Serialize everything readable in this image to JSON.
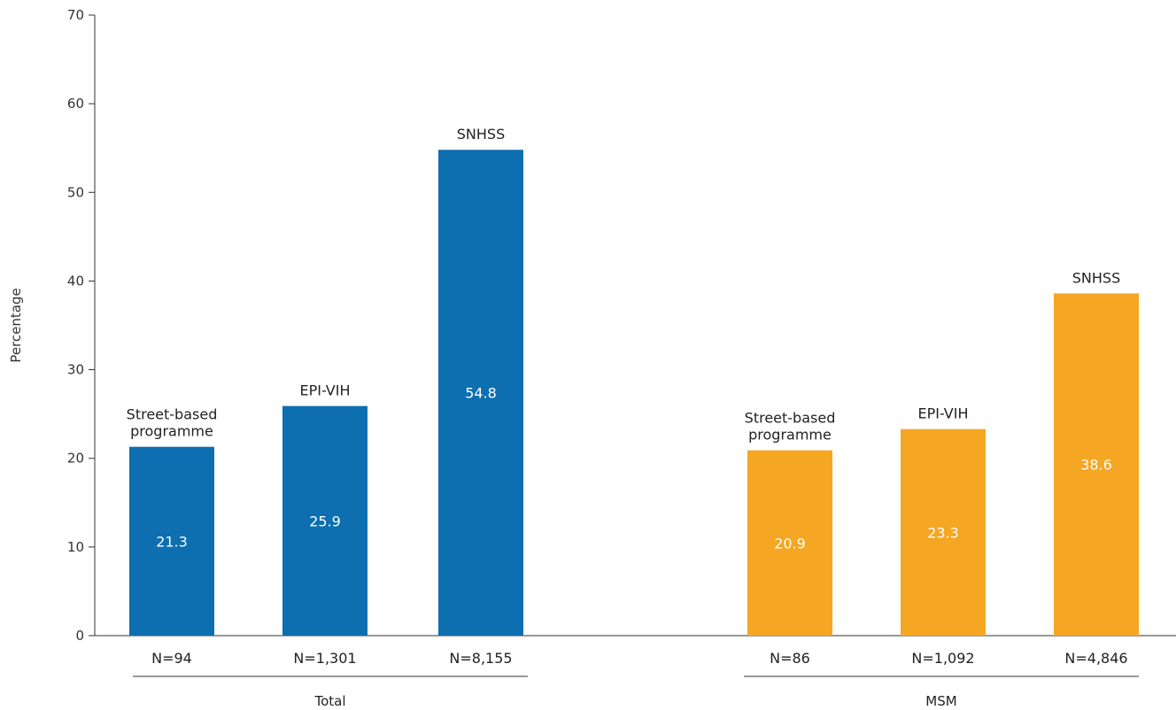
{
  "chart_data": {
    "type": "bar",
    "ylabel": "Percentage",
    "ylim": [
      0,
      70
    ],
    "yticks": [
      0,
      10,
      20,
      30,
      40,
      50,
      60,
      70
    ],
    "groups": [
      {
        "name": "Total",
        "color": "#0d6fb0",
        "bars": [
          {
            "label": [
              "Street-based",
              "programme"
            ],
            "value": 21.3,
            "value_text": "21.3",
            "n": "N=94"
          },
          {
            "label": [
              "EPI-VIH"
            ],
            "value": 25.9,
            "value_text": "25.9",
            "n": "N=1,301"
          },
          {
            "label": [
              "SNHSS"
            ],
            "value": 54.8,
            "value_text": "54.8",
            "n": "N=8,155"
          }
        ]
      },
      {
        "name": "MSM",
        "color": "#f5a623",
        "bars": [
          {
            "label": [
              "Street-based",
              "programme"
            ],
            "value": 20.9,
            "value_text": "20.9",
            "n": "N=86"
          },
          {
            "label": [
              "EPI-VIH"
            ],
            "value": 23.3,
            "value_text": "23.3",
            "n": "N=1,092"
          },
          {
            "label": [
              "SNHSS"
            ],
            "value": 38.6,
            "value_text": "38.6",
            "n": "N=4,846"
          }
        ]
      }
    ]
  }
}
